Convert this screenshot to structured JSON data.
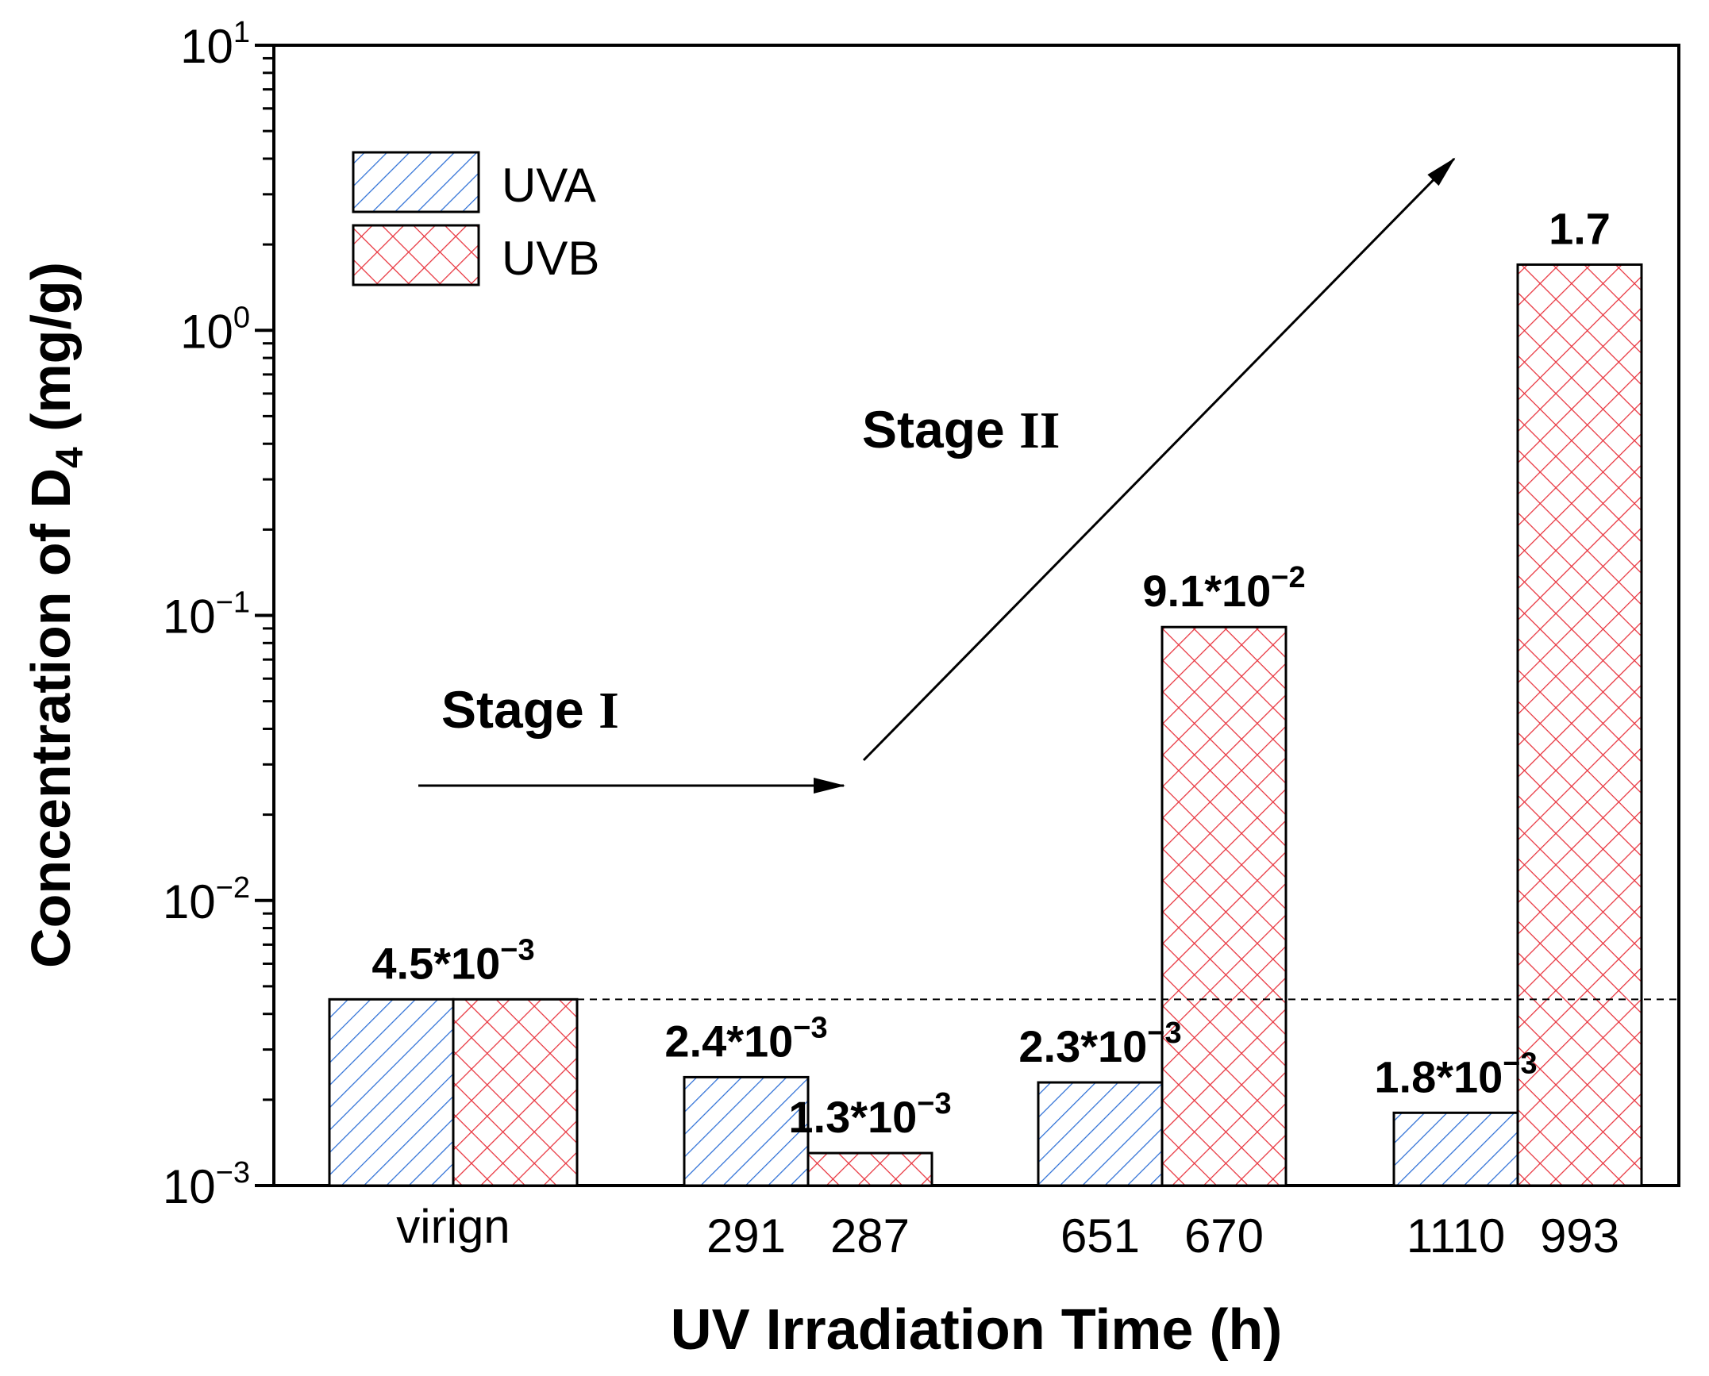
{
  "chart_data": {
    "type": "bar",
    "xlabel": "UV Irradiation Time (h)",
    "ylabel": "Concentration of D",
    "ylabel_subscript": "4",
    "ylabel_unit": " (mg/g)",
    "yscale": "log",
    "ylim": [
      0.001,
      10
    ],
    "yticks": [
      {
        "base": "10",
        "exp": "−3",
        "value": 0.001
      },
      {
        "base": "10",
        "exp": "−2",
        "value": 0.01
      },
      {
        "base": "10",
        "exp": "−1",
        "value": 0.1
      },
      {
        "base": "10",
        "exp": "0",
        "value": 1
      },
      {
        "base": "10",
        "exp": "1",
        "value": 10
      }
    ],
    "groups": [
      {
        "label": "virign",
        "bars": [
          {
            "series": "UVA",
            "value": 0.0045
          },
          {
            "series": "UVB",
            "value": 0.0045
          }
        ],
        "annotation": {
          "mant": "4.5*10",
          "exp": "−3"
        }
      },
      {
        "bars": [
          {
            "series": "UVA",
            "tick": "291",
            "value": 0.0024,
            "annotation": {
              "mant": "2.4*10",
              "exp": "−3"
            }
          },
          {
            "series": "UVB",
            "tick": "287",
            "value": 0.0013,
            "annotation": {
              "mant": "1.3*10",
              "exp": "−3"
            }
          }
        ]
      },
      {
        "bars": [
          {
            "series": "UVA",
            "tick": "651",
            "value": 0.0023,
            "annotation": {
              "mant": "2.3*10",
              "exp": "−3"
            }
          },
          {
            "series": "UVB",
            "tick": "670",
            "value": 0.091,
            "annotation": {
              "mant": "9.1*10",
              "exp": "−2"
            }
          }
        ]
      },
      {
        "bars": [
          {
            "series": "UVA",
            "tick": "1110",
            "value": 0.0018,
            "annotation": {
              "mant": "1.8*10",
              "exp": "−3"
            }
          },
          {
            "series": "UVB",
            "tick": "993",
            "value": 1.7,
            "annotation": {
              "mant": "1.7",
              "exp": ""
            }
          }
        ]
      }
    ],
    "legend": {
      "position": "top-left",
      "entries": [
        {
          "name": "UVA",
          "hatch": "diagonal",
          "color": "#2d6fd6"
        },
        {
          "name": "UVB",
          "hatch": "crosshatch",
          "color": "#e8323c"
        }
      ]
    },
    "reference_line": {
      "value": 0.0045,
      "style": "dashed"
    },
    "stage_annotations": [
      {
        "text": "Stage ",
        "roman": "I",
        "arrow": "horizontal"
      },
      {
        "text": "Stage ",
        "roman": "II",
        "arrow": "diagonal-up"
      }
    ]
  }
}
